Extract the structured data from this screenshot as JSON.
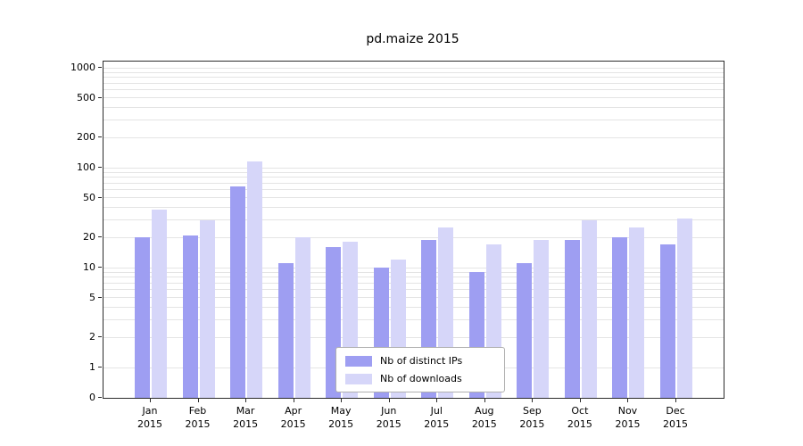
{
  "chart_data": {
    "type": "bar",
    "title": "pd.maize 2015",
    "yscale": "log",
    "ylim": [
      0,
      1000
    ],
    "yticks": [
      1000,
      500,
      200,
      100,
      50,
      20,
      10,
      5,
      2,
      1,
      0
    ],
    "grid": "horizontal log major+minor gridlines, light gray",
    "categories": [
      "Jan",
      "Feb",
      "Mar",
      "Apr",
      "May",
      "Jun",
      "Jul",
      "Aug",
      "Sep",
      "Oct",
      "Nov",
      "Dec"
    ],
    "year": "2015",
    "series": [
      {
        "name": "Nb of distinct IPs",
        "color": "#9e9ef2",
        "values": [
          20,
          21,
          65,
          11,
          16,
          10,
          19,
          9,
          11,
          19,
          20,
          17
        ]
      },
      {
        "name": "Nb of downloads",
        "color": "#d6d6f9",
        "values": [
          38,
          30,
          115,
          20,
          18,
          12,
          25,
          17,
          19,
          30,
          25,
          31
        ]
      }
    ],
    "legend_position": "inside-bottom-center"
  }
}
